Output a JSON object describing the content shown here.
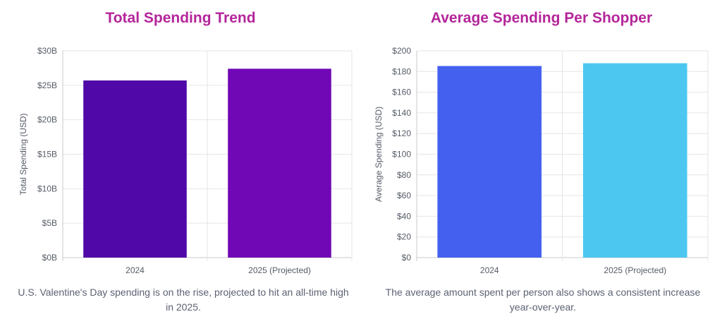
{
  "colors": {
    "title": "#b4259a",
    "caption": "#5b6272"
  },
  "chart_data": [
    {
      "type": "bar",
      "title": "Total Spending Trend",
      "categories": [
        "2024",
        "2025 (Projected)"
      ],
      "values": [
        25.7,
        27.4
      ],
      "bar_colors": [
        "#5009a8",
        "#7008b6"
      ],
      "xlabel": "",
      "ylabel": "Total Spending (USD)",
      "ylim": [
        0,
        30
      ],
      "yticks": [
        0,
        5,
        10,
        15,
        20,
        25,
        30
      ],
      "ytick_labels": [
        "$0B",
        "$5B",
        "$10B",
        "$15B",
        "$20B",
        "$25B",
        "$30B"
      ],
      "grid": true,
      "caption": "U.S. Valentine's Day spending is on the rise, projected to hit an all-time high in 2025."
    },
    {
      "type": "bar",
      "title": "Average Spending Per Shopper",
      "categories": [
        "2024",
        "2025 (Projected)"
      ],
      "values": [
        185.3,
        188
      ],
      "bar_colors": [
        "#4361ee",
        "#4cc8f0"
      ],
      "xlabel": "",
      "ylabel": "Average Spending (USD)",
      "ylim": [
        0,
        200
      ],
      "yticks": [
        0,
        20,
        40,
        60,
        80,
        100,
        120,
        140,
        160,
        180,
        200
      ],
      "ytick_labels": [
        "$0",
        "$20",
        "$40",
        "$60",
        "$80",
        "$100",
        "$120",
        "$140",
        "$160",
        "$180",
        "$200"
      ],
      "grid": true,
      "caption": "The average amount spent per person also shows a consistent increase year-over-year."
    }
  ]
}
